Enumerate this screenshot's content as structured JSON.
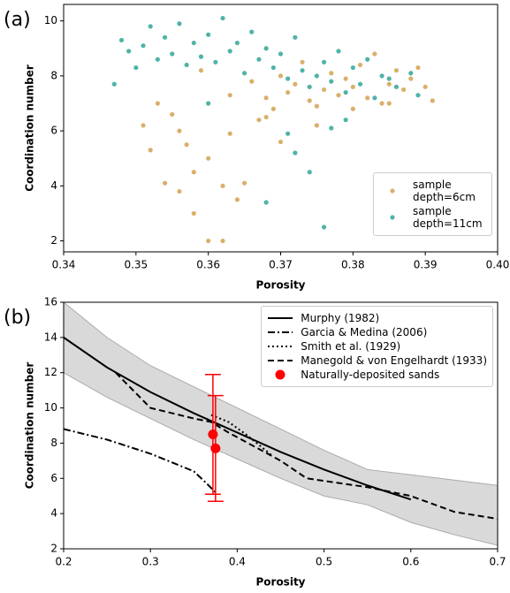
{
  "chart_data": [
    {
      "type": "scatter",
      "panel_label": "(a)",
      "xlabel": "Porosity",
      "ylabel": "Coordination number",
      "xlim": [
        0.34,
        0.4
      ],
      "xticks": [
        0.34,
        0.35,
        0.36,
        0.37,
        0.38,
        0.39,
        {
          "value": 0.4,
          "label": "0.40"
        }
      ],
      "ylim": [
        1.6,
        10.6
      ],
      "yticks": [
        2,
        4,
        6,
        8,
        10
      ],
      "legend": "lower right",
      "series": [
        {
          "name": "sample depth=6cm",
          "color": "#d9b06a",
          "x": [
            0.351,
            0.352,
            0.353,
            0.354,
            0.355,
            0.356,
            0.357,
            0.358,
            0.359,
            0.36,
            0.362,
            0.362,
            0.363,
            0.364,
            0.366,
            0.367,
            0.368,
            0.369,
            0.37,
            0.371,
            0.372,
            0.373,
            0.374,
            0.375,
            0.376,
            0.377,
            0.378,
            0.379,
            0.38,
            0.381,
            0.382,
            0.383,
            0.384,
            0.385,
            0.386,
            0.387,
            0.388,
            0.389,
            0.39,
            0.391,
            0.358,
            0.36,
            0.365,
            0.37,
            0.375,
            0.38,
            0.385,
            0.356,
            0.363,
            0.368
          ],
          "values": [
            6.2,
            5.3,
            7.0,
            4.1,
            6.6,
            3.8,
            5.5,
            3.0,
            8.2,
            5.0,
            2.0,
            4.0,
            7.3,
            3.5,
            7.8,
            6.4,
            7.2,
            6.8,
            8.0,
            7.4,
            7.7,
            8.5,
            7.1,
            6.9,
            7.5,
            8.1,
            7.3,
            7.9,
            7.6,
            8.4,
            7.2,
            8.8,
            7.0,
            7.7,
            8.2,
            7.5,
            7.9,
            8.3,
            7.6,
            7.1,
            4.5,
            2.0,
            4.1,
            5.6,
            6.2,
            6.8,
            7.0,
            6.0,
            5.9,
            6.5
          ]
        },
        {
          "name": "sample depth=11cm",
          "color": "#4fb3a7",
          "x": [
            0.347,
            0.348,
            0.349,
            0.35,
            0.351,
            0.352,
            0.353,
            0.354,
            0.355,
            0.356,
            0.357,
            0.358,
            0.359,
            0.36,
            0.361,
            0.362,
            0.363,
            0.364,
            0.365,
            0.366,
            0.367,
            0.368,
            0.369,
            0.37,
            0.371,
            0.372,
            0.373,
            0.374,
            0.375,
            0.376,
            0.377,
            0.378,
            0.379,
            0.38,
            0.381,
            0.382,
            0.383,
            0.384,
            0.385,
            0.386,
            0.388,
            0.389,
            0.36,
            0.371,
            0.374,
            0.376,
            0.377,
            0.372,
            0.368,
            0.379
          ],
          "values": [
            7.7,
            9.3,
            8.9,
            8.3,
            9.1,
            9.8,
            8.6,
            9.4,
            8.8,
            9.9,
            8.4,
            9.2,
            8.7,
            9.5,
            8.5,
            10.1,
            8.9,
            9.2,
            8.1,
            9.6,
            8.6,
            9.0,
            8.3,
            8.8,
            7.9,
            9.4,
            8.2,
            7.6,
            8.0,
            8.5,
            7.8,
            8.9,
            7.4,
            8.3,
            7.7,
            8.6,
            7.2,
            8.0,
            7.9,
            7.6,
            8.1,
            7.3,
            7.0,
            5.9,
            4.5,
            2.5,
            6.1,
            5.2,
            3.4,
            6.4
          ]
        }
      ]
    },
    {
      "type": "line",
      "panel_label": "(b)",
      "xlabel": "Porosity",
      "ylabel": "Coordination number",
      "xlim": [
        0.2,
        0.7
      ],
      "xticks": [
        0.2,
        0.3,
        0.4,
        0.5,
        0.6,
        0.7
      ],
      "ylim": [
        2,
        16
      ],
      "yticks": [
        2,
        4,
        6,
        8,
        10,
        12,
        14,
        16
      ],
      "legend": "upper right",
      "band": {
        "color": "#d9d9d9",
        "x": [
          0.2,
          0.25,
          0.3,
          0.35,
          0.4,
          0.45,
          0.5,
          0.55,
          0.6,
          0.65,
          0.7
        ],
        "upper": [
          16,
          14,
          12.4,
          11.2,
          10,
          8.8,
          7.6,
          6.5,
          6.2,
          5.9,
          5.6
        ],
        "lower": [
          12,
          10.6,
          9.4,
          8.2,
          7.1,
          6,
          5,
          4.5,
          3.5,
          2.8,
          2.2
        ]
      },
      "series": [
        {
          "name": "Murphy (1982)",
          "color": "#000000",
          "linestyle": "solid",
          "x": [
            0.2,
            0.25,
            0.3,
            0.35,
            0.4,
            0.45,
            0.5,
            0.55,
            0.6
          ],
          "values": [
            14,
            12.3,
            10.9,
            9.7,
            8.6,
            7.5,
            6.5,
            5.6,
            4.8
          ]
        },
        {
          "name": "Garcia & Medina (2006)",
          "color": "#000000",
          "linestyle": "dashdot",
          "x": [
            0.2,
            0.25,
            0.3,
            0.33,
            0.35,
            0.365,
            0.375
          ],
          "values": [
            8.8,
            8.2,
            7.4,
            6.8,
            6.4,
            5.7,
            5.2
          ]
        },
        {
          "name": "Smith et al. (1929)",
          "color": "#000000",
          "linestyle": "dotted",
          "x": [
            0.37,
            0.39,
            0.41,
            0.44
          ],
          "values": [
            9.6,
            9.2,
            8.5,
            7.3
          ]
        },
        {
          "name": "Manegold & von Engelhardt (1933)",
          "color": "#000000",
          "linestyle": "dashed",
          "x": [
            0.26,
            0.3,
            0.35,
            0.37,
            0.39,
            0.42,
            0.45,
            0.48,
            0.55,
            0.6,
            0.65,
            0.7
          ],
          "values": [
            12,
            10,
            9.4,
            9.2,
            8.6,
            7.8,
            7.0,
            6.0,
            5.5,
            5.0,
            4.1,
            3.7
          ]
        },
        {
          "name": "Naturally-deposited sands",
          "color": "#ff0000",
          "linestyle": "none",
          "marker": "o",
          "x": [
            0.372,
            0.375
          ],
          "values": [
            8.5,
            7.7
          ],
          "errors": [
            3.4,
            3.0
          ]
        }
      ]
    }
  ]
}
